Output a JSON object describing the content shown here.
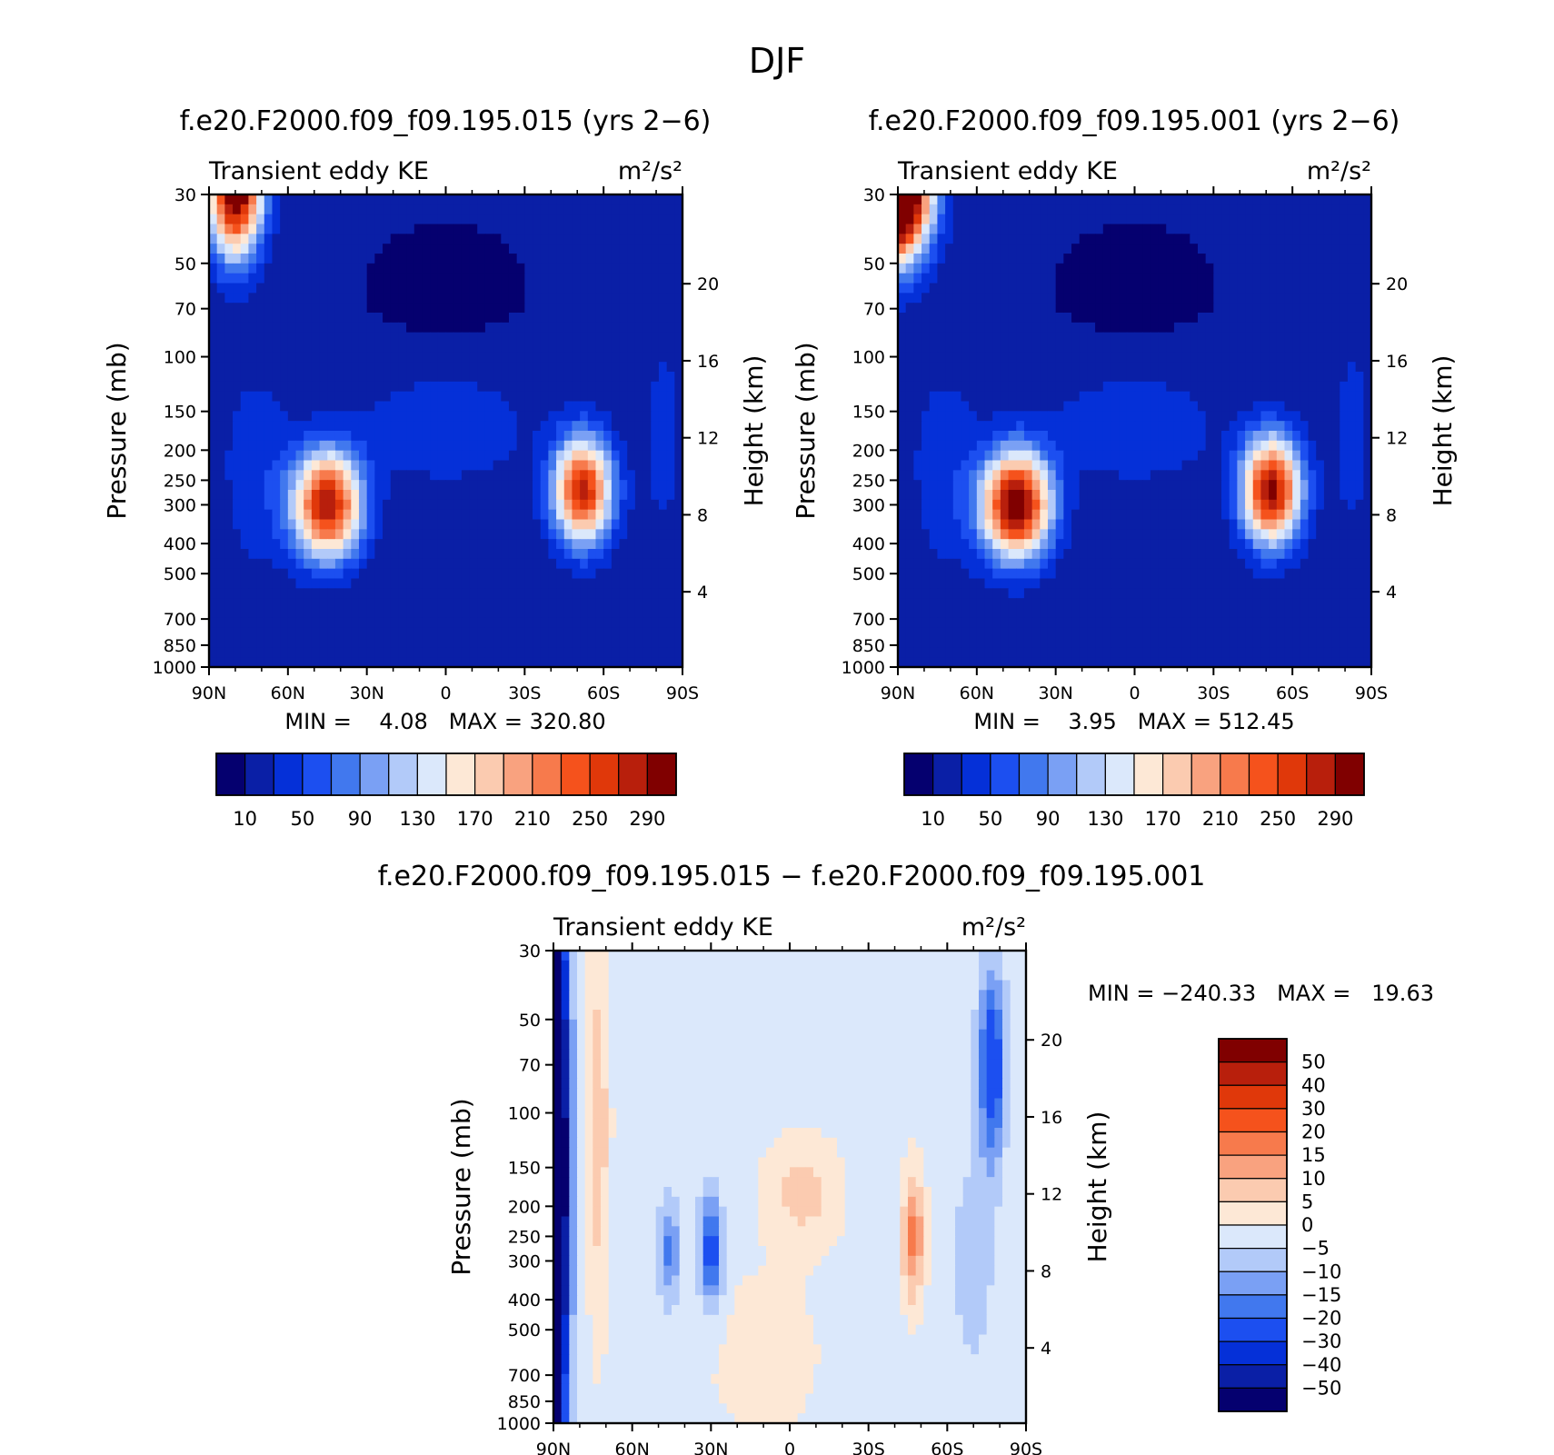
{
  "figure_title": "DJF",
  "chart_data": [
    {
      "type": "heatmap",
      "kind": "contour-filled latitude-pressure cross section",
      "title": "f.e20.F2000.f09_f09.195.015 (yrs 2−6)",
      "left_label": "Transient eddy KE",
      "units_label": "m²/s²",
      "xlabel": "",
      "ylabel": "Pressure (mb)",
      "y2label": "Height (km)",
      "x_ticks": [
        "90N",
        "60N",
        "30N",
        "0",
        "30S",
        "60S",
        "90S"
      ],
      "x_range": [
        90,
        -90
      ],
      "y_ticks": [
        30,
        50,
        70,
        100,
        150,
        200,
        250,
        300,
        400,
        500,
        700,
        850,
        1000
      ],
      "y_range": [
        1000,
        30
      ],
      "y2_ticks": [
        4,
        8,
        12,
        16,
        20
      ],
      "stats": "MIN =    4.08   MAX = 320.80",
      "colorbar_labels": [
        "10",
        "50",
        "90",
        "130",
        "170",
        "210",
        "250",
        "290"
      ],
      "levels": [
        10,
        30,
        50,
        70,
        90,
        110,
        130,
        150,
        170,
        190,
        210,
        230,
        250,
        270,
        290
      ],
      "features": [
        {
          "lat": 78,
          "p": 30,
          "value": 320
        },
        {
          "lat": 45,
          "p": 300,
          "value": 270
        },
        {
          "lat": -52,
          "p": 270,
          "value": 260
        }
      ]
    },
    {
      "type": "heatmap",
      "kind": "contour-filled latitude-pressure cross section",
      "title": "f.e20.F2000.f09_f09.195.001 (yrs 2−6)",
      "left_label": "Transient eddy KE",
      "units_label": "m²/s²",
      "xlabel": "",
      "ylabel": "Pressure (mb)",
      "y2label": "Height (km)",
      "x_ticks": [
        "90N",
        "60N",
        "30N",
        "0",
        "30S",
        "60S",
        "90S"
      ],
      "x_range": [
        90,
        -90
      ],
      "y_ticks": [
        30,
        50,
        70,
        100,
        150,
        200,
        250,
        300,
        400,
        500,
        700,
        850,
        1000
      ],
      "y_range": [
        1000,
        30
      ],
      "y2_ticks": [
        4,
        8,
        12,
        16,
        20
      ],
      "stats": "MIN =    3.95   MAX = 512.45",
      "colorbar_labels": [
        "10",
        "50",
        "90",
        "130",
        "170",
        "210",
        "250",
        "290"
      ],
      "levels": [
        10,
        30,
        50,
        70,
        90,
        110,
        130,
        150,
        170,
        190,
        210,
        230,
        250,
        270,
        290
      ],
      "features": [
        {
          "lat": 85,
          "p": 30,
          "value": 512
        },
        {
          "lat": 45,
          "p": 300,
          "value": 300
        },
        {
          "lat": -52,
          "p": 270,
          "value": 280
        }
      ]
    },
    {
      "type": "heatmap",
      "kind": "contour-filled latitude-pressure cross section (difference)",
      "title": "f.e20.F2000.f09_f09.195.015 − f.e20.F2000.f09_f09.195.001",
      "left_label": "Transient eddy KE",
      "units_label": "m²/s²",
      "xlabel": "",
      "ylabel": "Pressure (mb)",
      "y2label": "Height (km)",
      "x_ticks": [
        "90N",
        "60N",
        "30N",
        "0",
        "30S",
        "60S",
        "90S"
      ],
      "x_range": [
        90,
        -90
      ],
      "y_ticks": [
        30,
        50,
        70,
        100,
        150,
        200,
        250,
        300,
        400,
        500,
        700,
        850,
        1000
      ],
      "y_range": [
        1000,
        30
      ],
      "y2_ticks": [
        4,
        8,
        12,
        16,
        20
      ],
      "stats": "MIN = −240.33   MAX =   19.63",
      "colorbar_labels": [
        "50",
        "40",
        "30",
        "20",
        "15",
        "10",
        "5",
        "0",
        "−5",
        "−10",
        "−15",
        "−20",
        "−30",
        "−40",
        "−50"
      ],
      "levels": [
        -50,
        -40,
        -30,
        -20,
        -15,
        -10,
        -5,
        0,
        5,
        10,
        15,
        20,
        30,
        40,
        50
      ],
      "features": [
        {
          "lat": 85,
          "p": 100,
          "value": -240
        },
        {
          "lat": -48,
          "p": 250,
          "value": 19
        }
      ]
    }
  ],
  "palette_ke": [
    "#05006f",
    "#0a1fa6",
    "#0530d8",
    "#1c4ff0",
    "#4178ee",
    "#7aa0f4",
    "#b2caf9",
    "#dbe8fb",
    "#fde8d6",
    "#fbcbb0",
    "#f9a27f",
    "#f77a4c",
    "#f5521c",
    "#e0380a",
    "#b81f0c",
    "#800000"
  ],
  "palette_diff": [
    "#05006f",
    "#0a1fa6",
    "#0530d8",
    "#1c4ff0",
    "#4178ee",
    "#7aa0f4",
    "#b2caf9",
    "#dbe8fb",
    "#fde8d6",
    "#fbcbb0",
    "#f9a27f",
    "#f77a4c",
    "#f5521c",
    "#e0380a",
    "#b81f0c",
    "#800000"
  ]
}
